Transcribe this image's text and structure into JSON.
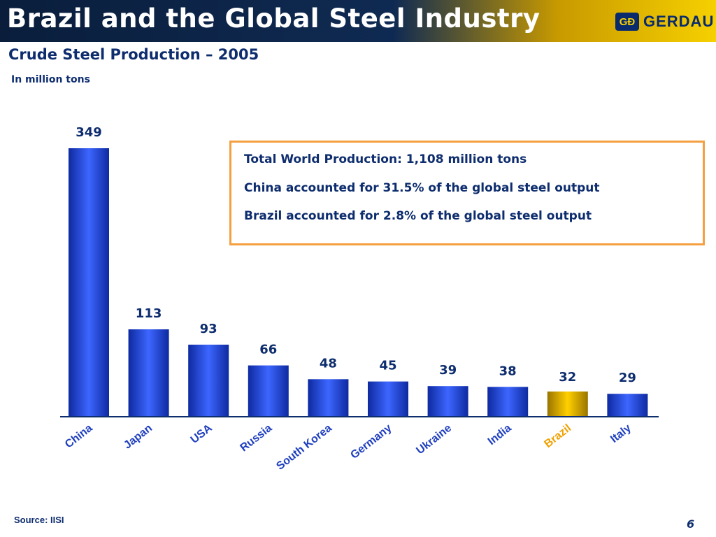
{
  "header": {
    "title": "Brazil and the Global Steel Industry",
    "logo_mark": "GÐ",
    "logo_text": "GERDAU"
  },
  "subtitle": "Crude Steel Production – 2005",
  "units": "In million tons",
  "infobox": {
    "lines": [
      "Total World Production: 1,108 million tons",
      "China accounted for 31.5% of the global steel output",
      "Brazil accounted for 2.8% of the global steel output"
    ]
  },
  "chart_data": {
    "type": "bar",
    "categories": [
      "China",
      "Japan",
      "USA",
      "Russia",
      "South Korea",
      "Germany",
      "Ukraine",
      "India",
      "Brazil",
      "Italy"
    ],
    "values": [
      349,
      113,
      93,
      66,
      48,
      45,
      39,
      38,
      32,
      29
    ],
    "highlight": "Brazil",
    "ylim": [
      0,
      349
    ],
    "grid": false,
    "colors": {
      "bar": "#2f56e0",
      "highlight_bar": "#f0c000",
      "value_label": "#0e2d6e",
      "category_label": "#1f3fbf",
      "highlight_label": "#f0a000"
    }
  },
  "source": "Source:  IISI",
  "page_number": "6"
}
